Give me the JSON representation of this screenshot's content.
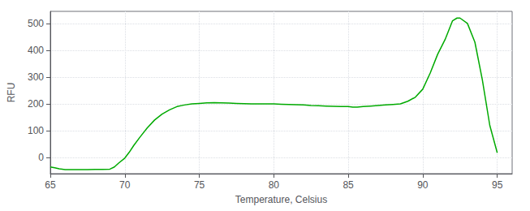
{
  "chart_data": {
    "type": "line",
    "xlabel": "Temperature, Celsius",
    "ylabel": "RFU",
    "color": "#00aa00",
    "grid": true,
    "xlim": [
      65,
      96
    ],
    "ylim": [
      -60,
      545
    ],
    "xticks": [
      65,
      70,
      75,
      80,
      85,
      90,
      95
    ],
    "yticks": [
      0,
      100,
      200,
      300,
      400,
      500
    ],
    "x": [
      65.0,
      65.3,
      65.6,
      66.0,
      66.5,
      67.0,
      67.5,
      68.0,
      68.5,
      69.0,
      69.3,
      69.6,
      70.0,
      70.3,
      70.6,
      71.0,
      71.5,
      72.0,
      72.5,
      73.0,
      73.5,
      74.0,
      74.5,
      75.0,
      75.5,
      76.0,
      76.5,
      77.0,
      77.5,
      78.0,
      78.5,
      79.0,
      79.5,
      80.0,
      80.5,
      81.0,
      81.5,
      82.0,
      82.5,
      83.0,
      83.5,
      84.0,
      84.5,
      85.0,
      85.3,
      85.6,
      86.0,
      86.5,
      87.0,
      87.5,
      88.0,
      88.5,
      89.0,
      89.5,
      90.0,
      90.5,
      91.0,
      91.5,
      92.0,
      92.3,
      92.5,
      93.0,
      93.5,
      94.0,
      94.5,
      95.0
    ],
    "values": [
      -35,
      -38,
      -42,
      -45,
      -45,
      -45,
      -45,
      -44,
      -44,
      -43,
      -35,
      -20,
      -2,
      20,
      45,
      75,
      110,
      140,
      162,
      178,
      190,
      196,
      200,
      202,
      204,
      205,
      204,
      203,
      202,
      201,
      200,
      200,
      200,
      200,
      199,
      198,
      197,
      196,
      194,
      193,
      192,
      191,
      190,
      190,
      188,
      188,
      190,
      192,
      194,
      196,
      198,
      200,
      210,
      225,
      255,
      315,
      385,
      440,
      510,
      520,
      520,
      500,
      430,
      290,
      120,
      18
    ]
  }
}
